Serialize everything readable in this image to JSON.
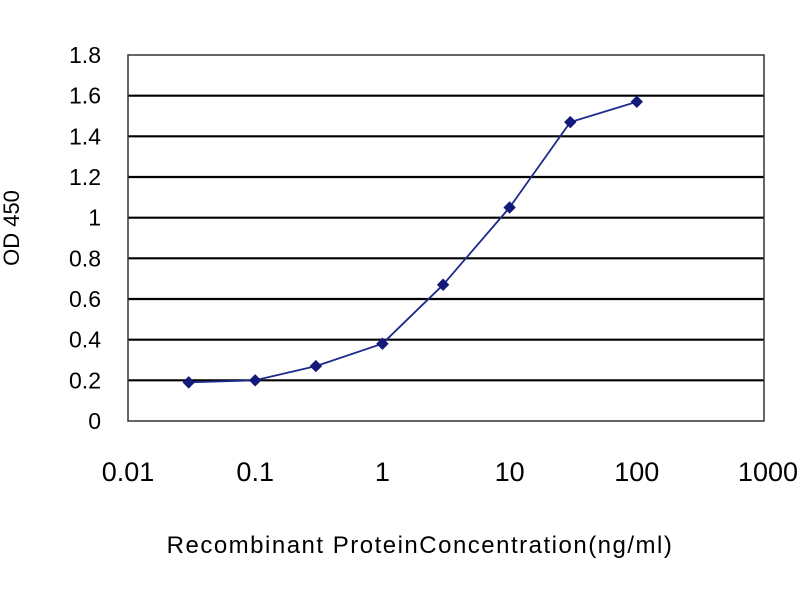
{
  "chart_data": {
    "type": "line",
    "title": "",
    "xlabel": "Recombinant ProteinConcentration(ng/ml)",
    "ylabel": "OD 450",
    "x_scale": "log",
    "xlim": [
      0.01,
      1000
    ],
    "ylim": [
      0,
      1.8
    ],
    "x_ticks": [
      0.01,
      0.1,
      1,
      10,
      100,
      1000
    ],
    "x_tick_labels": [
      "0.01",
      "0.1",
      "1",
      "10",
      "100",
      "1000"
    ],
    "y_ticks": [
      0,
      0.2,
      0.4,
      0.6,
      0.8,
      1,
      1.2,
      1.4,
      1.6,
      1.8
    ],
    "y_tick_labels": [
      "0",
      "0.2",
      "0.4",
      "0.6",
      "0.8",
      "1",
      "1.2",
      "1.4",
      "1.6",
      "1.8"
    ],
    "grid": "horizontal",
    "legend": "none",
    "series": [
      {
        "x": [
          0.03,
          0.1,
          0.3,
          1,
          3,
          10,
          30,
          100
        ],
        "values": [
          0.19,
          0.2,
          0.27,
          0.38,
          0.67,
          1.05,
          1.47,
          1.57
        ],
        "color": "#1f2b8c"
      }
    ],
    "colors": {
      "plot_background": "#ffffff",
      "gridline": "#000000",
      "line": "#1f2b8c",
      "marker": "#131a7a"
    }
  }
}
